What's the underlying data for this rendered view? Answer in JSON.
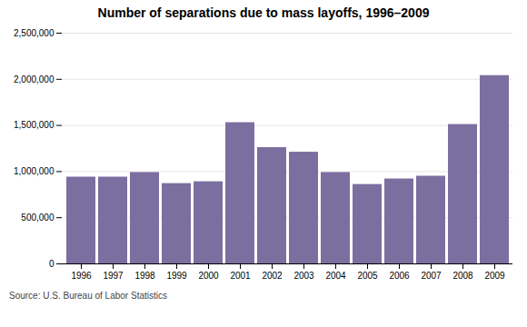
{
  "chart_data": {
    "type": "bar",
    "title": "Number of separations due to mass layoffs, 1996–2009",
    "categories": [
      "1996",
      "1997",
      "1998",
      "1999",
      "2000",
      "2001",
      "2002",
      "2003",
      "2004",
      "2005",
      "2006",
      "2007",
      "2008",
      "2009"
    ],
    "values": [
      940000,
      940000,
      990000,
      870000,
      890000,
      1530000,
      1260000,
      1210000,
      990000,
      860000,
      920000,
      950000,
      1510000,
      2040000
    ],
    "color": "#7b6fa0",
    "ylim": [
      0,
      2500000
    ],
    "yticks": [
      0,
      {
        "value": 500000,
        "label": "500,000"
      },
      {
        "value": 1000000,
        "label": "1,000,000"
      },
      {
        "value": 1500000,
        "label": "1,500,000"
      },
      {
        "value": 2000000,
        "label": "2,000,000"
      },
      {
        "value": 2500000,
        "label": "2,500,000"
      }
    ],
    "grid": true,
    "annotation": "Source: U.S. Bureau of Labor Statistics"
  }
}
